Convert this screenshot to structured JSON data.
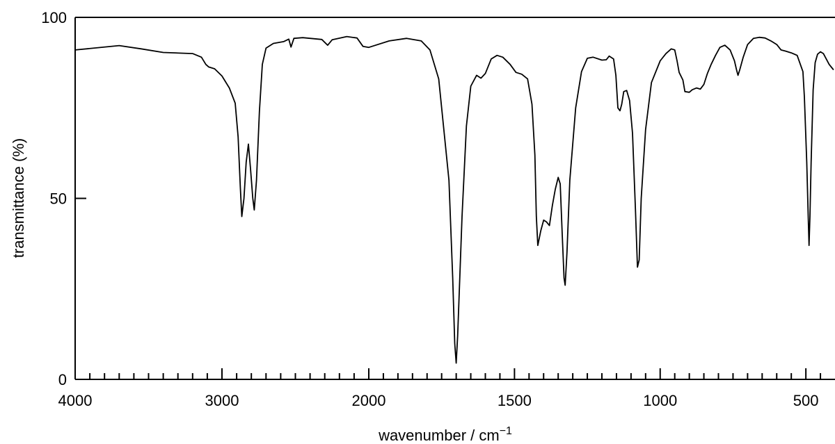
{
  "chart_data": {
    "type": "line",
    "title": "",
    "xlabel": "wavenumber / cm",
    "xlabel_superscript": "−1",
    "ylabel": "transmittance (%)",
    "xlim": [
      4000,
      400
    ],
    "ylim": [
      0,
      100
    ],
    "x_reversed": true,
    "grid": false,
    "x_ticks": [
      {
        "value": 4000,
        "label": "4000"
      },
      {
        "value": 3000,
        "label": "3000"
      },
      {
        "value": 2000,
        "label": "2000"
      },
      {
        "value": 1500,
        "label": "1500"
      },
      {
        "value": 1000,
        "label": "1000"
      },
      {
        "value": 500,
        "label": "500"
      }
    ],
    "y_ticks": [
      {
        "value": 0,
        "label": "0"
      },
      {
        "value": 50,
        "label": "50"
      },
      {
        "value": 100,
        "label": "100"
      }
    ],
    "series": [
      {
        "color": "#000000",
        "points": [
          [
            4000,
            91.0
          ],
          [
            3700,
            92.2
          ],
          [
            3550,
            91.3
          ],
          [
            3400,
            90.3
          ],
          [
            3200,
            90.0
          ],
          [
            3140,
            89.0
          ],
          [
            3110,
            87.0
          ],
          [
            3090,
            86.3
          ],
          [
            3050,
            85.8
          ],
          [
            3000,
            83.8
          ],
          [
            2950,
            80.5
          ],
          [
            2910,
            76.3
          ],
          [
            2890,
            67.0
          ],
          [
            2875,
            53.0
          ],
          [
            2865,
            45.0
          ],
          [
            2850,
            50.0
          ],
          [
            2835,
            60.0
          ],
          [
            2820,
            65.0
          ],
          [
            2805,
            58.0
          ],
          [
            2790,
            50.0
          ],
          [
            2780,
            46.8
          ],
          [
            2765,
            55.0
          ],
          [
            2745,
            74.0
          ],
          [
            2725,
            87.0
          ],
          [
            2700,
            91.5
          ],
          [
            2650,
            92.8
          ],
          [
            2580,
            93.3
          ],
          [
            2545,
            94.0
          ],
          [
            2530,
            91.8
          ],
          [
            2510,
            94.2
          ],
          [
            2450,
            94.4
          ],
          [
            2320,
            93.9
          ],
          [
            2280,
            92.3
          ],
          [
            2250,
            93.8
          ],
          [
            2150,
            94.7
          ],
          [
            2080,
            94.3
          ],
          [
            2040,
            92.0
          ],
          [
            2000,
            91.7
          ],
          [
            1930,
            93.5
          ],
          [
            1870,
            94.2
          ],
          [
            1820,
            93.5
          ],
          [
            1790,
            91.0
          ],
          [
            1760,
            83.0
          ],
          [
            1740,
            67.0
          ],
          [
            1725,
            55.0
          ],
          [
            1712,
            28.0
          ],
          [
            1705,
            10.0
          ],
          [
            1700,
            4.5
          ],
          [
            1695,
            12.0
          ],
          [
            1680,
            45.0
          ],
          [
            1665,
            70.0
          ],
          [
            1650,
            81.0
          ],
          [
            1630,
            84.0
          ],
          [
            1615,
            83.2
          ],
          [
            1600,
            84.5
          ],
          [
            1580,
            88.5
          ],
          [
            1560,
            89.5
          ],
          [
            1540,
            89.0
          ],
          [
            1515,
            87.0
          ],
          [
            1495,
            84.8
          ],
          [
            1475,
            84.3
          ],
          [
            1455,
            83.0
          ],
          [
            1440,
            76.0
          ],
          [
            1430,
            62.0
          ],
          [
            1425,
            45.0
          ],
          [
            1420,
            37.0
          ],
          [
            1410,
            41.0
          ],
          [
            1400,
            44.0
          ],
          [
            1390,
            43.5
          ],
          [
            1380,
            42.5
          ],
          [
            1370,
            48.0
          ],
          [
            1360,
            52.5
          ],
          [
            1350,
            55.8
          ],
          [
            1343,
            54.0
          ],
          [
            1336,
            40.0
          ],
          [
            1330,
            28.0
          ],
          [
            1326,
            26.0
          ],
          [
            1320,
            35.0
          ],
          [
            1310,
            55.0
          ],
          [
            1290,
            75.0
          ],
          [
            1270,
            85.0
          ],
          [
            1250,
            88.7
          ],
          [
            1230,
            89.0
          ],
          [
            1200,
            88.2
          ],
          [
            1185,
            88.3
          ],
          [
            1175,
            89.3
          ],
          [
            1160,
            88.5
          ],
          [
            1152,
            84.0
          ],
          [
            1145,
            75.0
          ],
          [
            1138,
            74.2
          ],
          [
            1132,
            76.0
          ],
          [
            1125,
            79.5
          ],
          [
            1115,
            79.8
          ],
          [
            1105,
            77.0
          ],
          [
            1095,
            68.0
          ],
          [
            1085,
            47.0
          ],
          [
            1078,
            31.0
          ],
          [
            1072,
            33.0
          ],
          [
            1065,
            50.0
          ],
          [
            1050,
            69.0
          ],
          [
            1030,
            82.0
          ],
          [
            1000,
            88.0
          ],
          [
            980,
            90.0
          ],
          [
            962,
            91.3
          ],
          [
            950,
            91.0
          ],
          [
            942,
            88.0
          ],
          [
            935,
            84.8
          ],
          [
            922,
            82.7
          ],
          [
            915,
            79.5
          ],
          [
            900,
            79.3
          ],
          [
            890,
            80.0
          ],
          [
            875,
            80.5
          ],
          [
            862,
            80.2
          ],
          [
            850,
            81.5
          ],
          [
            838,
            84.5
          ],
          [
            825,
            87.0
          ],
          [
            810,
            89.5
          ],
          [
            795,
            91.7
          ],
          [
            778,
            92.3
          ],
          [
            760,
            91.0
          ],
          [
            745,
            88.0
          ],
          [
            738,
            85.5
          ],
          [
            733,
            84.0
          ],
          [
            727,
            85.5
          ],
          [
            715,
            89.0
          ],
          [
            700,
            92.5
          ],
          [
            680,
            94.2
          ],
          [
            660,
            94.5
          ],
          [
            640,
            94.3
          ],
          [
            620,
            93.5
          ],
          [
            600,
            92.5
          ],
          [
            585,
            91.0
          ],
          [
            570,
            90.7
          ],
          [
            550,
            90.2
          ],
          [
            530,
            89.5
          ],
          [
            510,
            85.0
          ],
          [
            505,
            78.0
          ],
          [
            497,
            60.0
          ],
          [
            492,
            45.0
          ],
          [
            489,
            37.0
          ],
          [
            486,
            45.0
          ],
          [
            482,
            60.0
          ],
          [
            475,
            80.0
          ],
          [
            468,
            87.5
          ],
          [
            460,
            89.8
          ],
          [
            450,
            90.5
          ],
          [
            440,
            90.0
          ],
          [
            420,
            87.0
          ],
          [
            405,
            85.5
          ]
        ]
      }
    ]
  }
}
